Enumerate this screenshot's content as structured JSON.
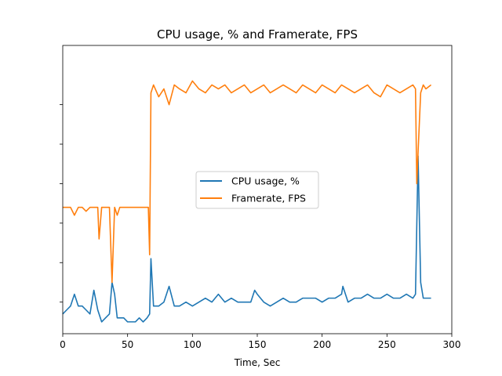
{
  "chart_data": {
    "type": "line",
    "title": "CPU usage, % and Framerate, FPS",
    "xlabel": "Time, Sec",
    "ylabel": "",
    "xlim": [
      0,
      300
    ],
    "ylim": [
      -8,
      65
    ],
    "x_ticks": [
      0,
      50,
      100,
      150,
      200,
      250,
      300
    ],
    "y_ticks": [
      0,
      10,
      20,
      30,
      40,
      50
    ],
    "y_tick_labels_visible": false,
    "grid": false,
    "legend_position": "center",
    "series": [
      {
        "name": "CPU usage, %",
        "color": "#1f77b4",
        "x": [
          0,
          3,
          6,
          9,
          12,
          15,
          18,
          21,
          24,
          27,
          30,
          33,
          36,
          38,
          40,
          42,
          44,
          47,
          50,
          53,
          56,
          59,
          62,
          65,
          67,
          68,
          70,
          74,
          78,
          82,
          86,
          90,
          95,
          100,
          105,
          110,
          115,
          120,
          125,
          130,
          135,
          140,
          145,
          148,
          150,
          155,
          160,
          165,
          170,
          175,
          180,
          185,
          190,
          195,
          200,
          205,
          210,
          215,
          216,
          220,
          225,
          230,
          235,
          240,
          245,
          250,
          255,
          260,
          265,
          270,
          272,
          274,
          276,
          278,
          280,
          284
        ],
        "values": [
          -3,
          -2,
          -1,
          2,
          -1,
          -1,
          -2,
          -3,
          3,
          -2,
          -5,
          -4,
          -3,
          5,
          2,
          -4,
          -4,
          -4,
          -5,
          -5,
          -5,
          -4,
          -5,
          -4,
          -3,
          11,
          -1,
          -1,
          0,
          4,
          -1,
          -1,
          0,
          -1,
          0,
          1,
          0,
          2,
          0,
          1,
          0,
          0,
          0,
          3,
          2,
          0,
          -1,
          0,
          1,
          0,
          0,
          1,
          1,
          1,
          0,
          1,
          1,
          2,
          4,
          0,
          1,
          1,
          2,
          1,
          1,
          2,
          1,
          1,
          2,
          1,
          2,
          37,
          5,
          1,
          1,
          1
        ]
      },
      {
        "name": "Framerate, FPS",
        "color": "#ff7f0e",
        "x": [
          0,
          3,
          6,
          9,
          12,
          15,
          18,
          21,
          24,
          27,
          28,
          30,
          33,
          36,
          38,
          40,
          42,
          44,
          47,
          50,
          53,
          56,
          59,
          62,
          65,
          66,
          67,
          68,
          70,
          74,
          78,
          82,
          86,
          90,
          95,
          100,
          105,
          110,
          115,
          120,
          125,
          130,
          135,
          140,
          145,
          150,
          155,
          160,
          165,
          170,
          175,
          180,
          185,
          190,
          195,
          200,
          205,
          210,
          215,
          220,
          225,
          230,
          235,
          240,
          245,
          250,
          255,
          260,
          265,
          270,
          272,
          273,
          274,
          276,
          278,
          280,
          284
        ],
        "values": [
          24,
          24,
          24,
          22,
          24,
          24,
          23,
          24,
          24,
          24,
          16,
          24,
          24,
          24,
          5,
          24,
          22,
          24,
          24,
          24,
          24,
          24,
          24,
          24,
          24,
          24,
          12,
          53,
          55,
          52,
          54,
          50,
          55,
          54,
          53,
          56,
          54,
          53,
          55,
          54,
          55,
          53,
          54,
          55,
          53,
          54,
          55,
          53,
          54,
          55,
          54,
          53,
          55,
          54,
          53,
          55,
          54,
          53,
          55,
          54,
          53,
          54,
          55,
          53,
          52,
          55,
          54,
          53,
          54,
          55,
          54,
          30,
          38,
          53,
          55,
          54,
          55
        ]
      }
    ]
  }
}
